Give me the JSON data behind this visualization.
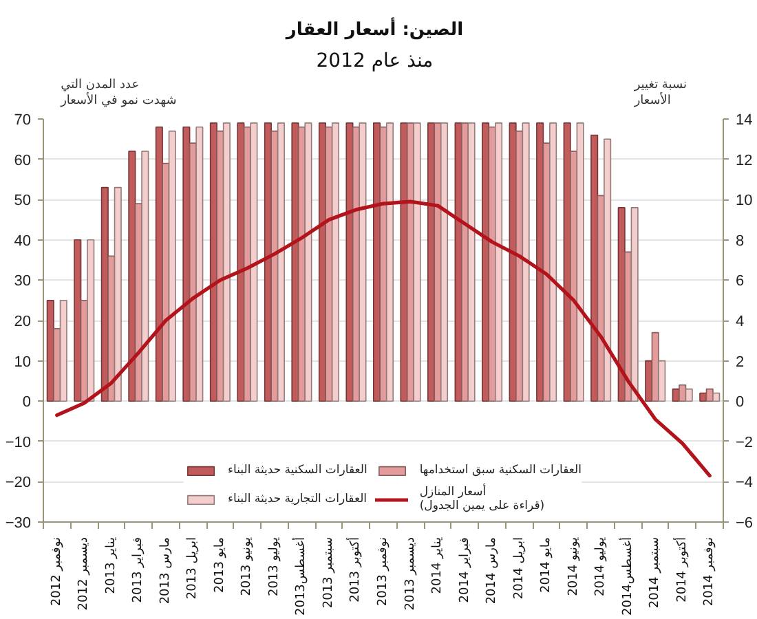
{
  "chart_data": {
    "type": "bar",
    "title": "الصين: أسعار العقار",
    "subtitle": "منذ عام 2012",
    "ylabel": "عدد المدن التي\nشهدت نمو في الأسعار",
    "y2label": "نسبة تغيير\nالأسعار",
    "categories": [
      "نوفمبر 2012",
      "ديسمبر 2012",
      "يناير 2013",
      "فبراير 2013",
      "مارس 2013",
      "ابريل 2013",
      "مايو 2013",
      "يونيو 2013",
      "يوليو 2013",
      "أغسطس2013",
      "سبتمبر 2013",
      "أكتوبر 2013",
      "نوفمبر 2013",
      "ديسمبر 2013",
      "يناير 2014",
      "فبراير 2014",
      "مارس 2014",
      "ابريل 2014",
      "مايو 2014",
      "يونيو 2014",
      "يوليو 2014",
      "أغسطس2014",
      "سبتمبر 2014",
      "أكتوبر 2014",
      "نوفمبر 2014"
    ],
    "series": [
      {
        "name": "العقارات السكنية حديثة البناء",
        "color": "#c25b5b",
        "values": [
          25,
          40,
          53,
          62,
          68,
          68,
          69,
          69,
          69,
          69,
          69,
          69,
          69,
          69,
          69,
          69,
          69,
          69,
          69,
          69,
          66,
          48,
          10,
          3,
          2
        ]
      },
      {
        "name": "العقارات السكنية سبق استخدامها",
        "color": "#e39b9b",
        "values": [
          18,
          25,
          36,
          49,
          59,
          64,
          67,
          68,
          67,
          68,
          68,
          68,
          68,
          69,
          69,
          69,
          68,
          67,
          64,
          62,
          51,
          37,
          17,
          4,
          3
        ]
      },
      {
        "name": "العقارات التجارية حديثة البناء",
        "color": "#f4cdcd",
        "values": [
          25,
          40,
          53,
          62,
          67,
          68,
          69,
          69,
          69,
          69,
          69,
          69,
          69,
          69,
          69,
          69,
          69,
          69,
          69,
          69,
          65,
          48,
          10,
          3,
          2
        ]
      },
      {
        "name": "أسعار المنازل\n(قراءة على يمين الجدول)",
        "type": "line",
        "axis": "y2",
        "color": "#b3141c",
        "values": [
          -0.7,
          -0.1,
          0.9,
          2.4,
          4.0,
          5.1,
          6.0,
          6.6,
          7.3,
          8.1,
          9.0,
          9.5,
          9.8,
          9.9,
          9.7,
          8.8,
          7.9,
          7.2,
          6.3,
          5.0,
          3.2,
          1.0,
          -0.9,
          -2.1,
          -3.7
        ]
      }
    ],
    "ylim": [
      -30,
      70
    ],
    "yticks": [
      -30,
      -20,
      -10,
      0,
      10,
      20,
      30,
      40,
      50,
      60,
      70
    ],
    "y2lim": [
      -6,
      14
    ],
    "y2ticks": [
      -6,
      -4,
      -2,
      0,
      2,
      4,
      6,
      8,
      10,
      12,
      14
    ],
    "grid": "y",
    "legend": "bottom"
  }
}
